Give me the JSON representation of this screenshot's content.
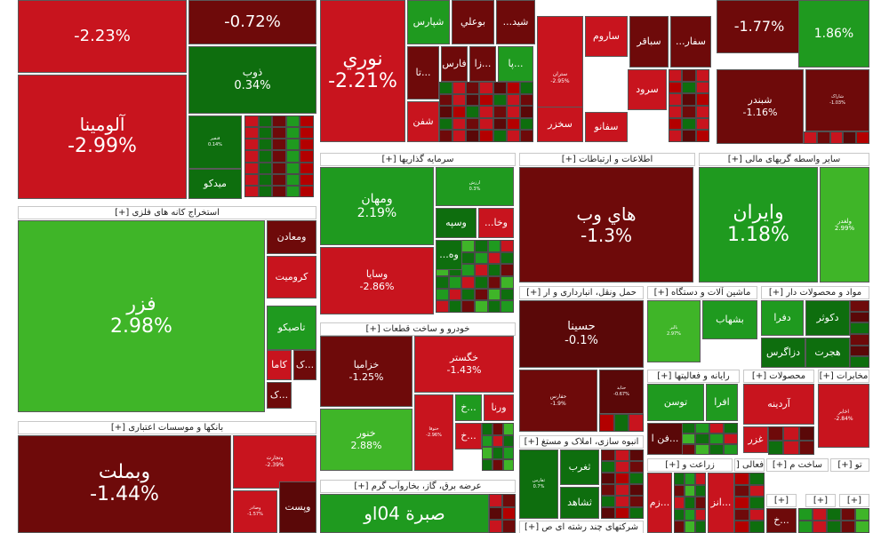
{
  "colors": {
    "strong_red": "#b30000",
    "red": "#c8141e",
    "dark_red": "#6e0a0a",
    "deeper_red": "#5a0808",
    "dark_green": "#0e6e0e",
    "green": "#1f9a1f",
    "light_green": "#3fb528"
  },
  "sectors": [
    {
      "id": "metals-mining",
      "label": "استخراج کانه های فلزی [+]"
    },
    {
      "id": "banks",
      "label": "بانکها و موسسات اعتباری [+]"
    },
    {
      "id": "investments",
      "label": "سرمایه گذاریها [+]"
    },
    {
      "id": "auto",
      "label": "خودرو و ساخت قطعات [+]"
    },
    {
      "id": "utilities",
      "label": "عرضه برق، گاز، بخاروآب گرم [+]"
    },
    {
      "id": "it",
      "label": "اطلاعات و ارتباطات [+]"
    },
    {
      "id": "finance-other",
      "label": "سایر واسطه گریهای مالی [+]"
    },
    {
      "id": "transport",
      "label": "حمل ونقل، انبارداری و ار [+]"
    },
    {
      "id": "machinery",
      "label": "ماشین آلات و دستگاه [+]"
    },
    {
      "id": "materials",
      "label": "مواد و محصولات دار [+]"
    },
    {
      "id": "computer",
      "label": "رایانه و فعالیتها [+]"
    },
    {
      "id": "products",
      "label": "محصولات [+]"
    },
    {
      "id": "telecom",
      "label": "مخابرات [+]"
    },
    {
      "id": "realestate",
      "label": "انبوه سازی، املاک و مستغ [+]"
    },
    {
      "id": "agri",
      "label": "زراعت و [+]"
    },
    {
      "id": "actv",
      "label": "فعالی [+]"
    },
    {
      "id": "build",
      "label": "ساخت م [+]"
    },
    {
      "id": "to",
      "label": "تو [+]"
    },
    {
      "id": "multi",
      "label": "شرکتهای چند رشته ای ص [+]"
    },
    {
      "id": "x1",
      "label": "[+]"
    },
    {
      "id": "x2",
      "label": "[+]"
    },
    {
      "id": "x3",
      "label": "[+]"
    }
  ],
  "tiles": [
    {
      "id": "t1",
      "name": "",
      "pct": "-2.23%",
      "color": "red"
    },
    {
      "id": "t2",
      "name": "آلومينا",
      "pct": "-2.99%",
      "color": "red"
    },
    {
      "id": "t3",
      "name": "",
      "pct": "-0.72%",
      "color": "dark_red"
    },
    {
      "id": "t4",
      "name": "ذوب",
      "pct": "0.34%",
      "color": "dark_green"
    },
    {
      "id": "t5",
      "name": "فنفیر",
      "pct": "0.14%",
      "color": "dark_green"
    },
    {
      "id": "t6",
      "name": "ميدكو",
      "pct": "",
      "color": "dark_green"
    },
    {
      "id": "t7",
      "name": "نوري",
      "pct": "-2.21%",
      "color": "red"
    },
    {
      "id": "t8",
      "name": "شپارس",
      "pct": "",
      "color": "green"
    },
    {
      "id": "t9",
      "name": "بوعلي",
      "pct": "",
      "color": "dark_red"
    },
    {
      "id": "t10",
      "name": "شيد...",
      "pct": "",
      "color": "dark_red"
    },
    {
      "id": "t11",
      "name": "...تا",
      "pct": "",
      "color": "dark_red"
    },
    {
      "id": "t12",
      "name": "فارس",
      "pct": "",
      "color": "dark_red"
    },
    {
      "id": "t13",
      "name": "...زا",
      "pct": "",
      "color": "dark_red"
    },
    {
      "id": "t14",
      "name": "...پا",
      "pct": "",
      "color": "green"
    },
    {
      "id": "t15",
      "name": "شفن",
      "pct": "",
      "color": "red"
    },
    {
      "id": "t16",
      "name": "ستران",
      "pct": "-2.95%",
      "color": "red"
    },
    {
      "id": "t17",
      "name": "ساروم",
      "pct": "",
      "color": "red"
    },
    {
      "id": "t18",
      "name": "سباقر",
      "pct": "",
      "color": "dark_red"
    },
    {
      "id": "t19",
      "name": "سفار...",
      "pct": "",
      "color": "dark_red"
    },
    {
      "id": "t20",
      "name": "سرود",
      "pct": "",
      "color": "red"
    },
    {
      "id": "t21",
      "name": "سخزر",
      "pct": "",
      "color": "red"
    },
    {
      "id": "t22",
      "name": "سفانو",
      "pct": "",
      "color": "red"
    },
    {
      "id": "t23",
      "name": "",
      "pct": "-1.77%",
      "color": "dark_red"
    },
    {
      "id": "t24",
      "name": "",
      "pct": "1.86%",
      "color": "green"
    },
    {
      "id": "t25",
      "name": "شبندر",
      "pct": "-1.16%",
      "color": "dark_red"
    },
    {
      "id": "t26",
      "name": "شاراک",
      "pct": "-1.03%",
      "color": "dark_red"
    },
    {
      "id": "t27",
      "name": "فزر",
      "pct": "2.98%",
      "color": "light_green"
    },
    {
      "id": "t28",
      "name": "ومعادن",
      "pct": "",
      "color": "dark_red"
    },
    {
      "id": "t29",
      "name": "كروميت",
      "pct": "",
      "color": "red"
    },
    {
      "id": "t30",
      "name": "تاصيكو",
      "pct": "",
      "color": "green"
    },
    {
      "id": "t31",
      "name": "...ک",
      "pct": "",
      "color": "dark_red"
    },
    {
      "id": "t32",
      "name": "كاما",
      "pct": "",
      "color": "red"
    },
    {
      "id": "t33",
      "name": "...ک",
      "pct": "",
      "color": "dark_red"
    },
    {
      "id": "t34",
      "name": "وبملت",
      "pct": "-1.44%",
      "color": "dark_red"
    },
    {
      "id": "t35",
      "name": "وتجارت",
      "pct": "-2.39%",
      "color": "red"
    },
    {
      "id": "t36",
      "name": "وصادر",
      "pct": "-1.57%",
      "color": "red"
    },
    {
      "id": "t37",
      "name": "وپست",
      "pct": "",
      "color": "deeper_red"
    },
    {
      "id": "t38",
      "name": "ومهان",
      "pct": "2.19%",
      "color": "green"
    },
    {
      "id": "t39",
      "name": "وسايا",
      "pct": "-2.86%",
      "color": "red"
    },
    {
      "id": "t40",
      "name": "ارزش",
      "pct": "0.3%",
      "color": "green"
    },
    {
      "id": "t41",
      "name": "وسپه",
      "pct": "",
      "color": "dark_green"
    },
    {
      "id": "t42",
      "name": "وخا...",
      "pct": "",
      "color": "red"
    },
    {
      "id": "t43",
      "name": "وه...",
      "pct": "",
      "color": "dark_green"
    },
    {
      "id": "t44",
      "name": "خزاميا",
      "pct": "-1.25%",
      "color": "dark_red"
    },
    {
      "id": "t45",
      "name": "خگستر",
      "pct": "-1.43%",
      "color": "red"
    },
    {
      "id": "t46",
      "name": "خنور",
      "pct": "2.88%",
      "color": "light_green"
    },
    {
      "id": "t47",
      "name": "ختوقا",
      "pct": "-2.96%",
      "color": "red"
    },
    {
      "id": "t48",
      "name": "...خ",
      "pct": "",
      "color": "green"
    },
    {
      "id": "t49",
      "name": "ورنا",
      "pct": "",
      "color": "red"
    },
    {
      "id": "t50",
      "name": "...خ",
      "pct": "",
      "color": "red"
    },
    {
      "id": "t51",
      "name": "صبرة 04او",
      "pct": "",
      "color": "green"
    },
    {
      "id": "t52",
      "name": "هاي وب",
      "pct": "-1.3%",
      "color": "dark_red"
    },
    {
      "id": "t53",
      "name": "وايران",
      "pct": "1.18%",
      "color": "green"
    },
    {
      "id": "t54",
      "name": "ولغدر",
      "pct": "2.99%",
      "color": "light_green"
    },
    {
      "id": "t55",
      "name": "حسينا",
      "pct": "-0.1%",
      "color": "deeper_red"
    },
    {
      "id": "t56",
      "name": "حفارس",
      "pct": "-1.9%",
      "color": "dark_red"
    },
    {
      "id": "t57",
      "name": "حتاید",
      "pct": "-0.67%",
      "color": "deeper_red"
    },
    {
      "id": "t58",
      "name": "بالبر",
      "pct": "2.97%",
      "color": "light_green"
    },
    {
      "id": "t59",
      "name": "بشهاب",
      "pct": "",
      "color": "green"
    },
    {
      "id": "t60",
      "name": "دفرا",
      "pct": "",
      "color": "green"
    },
    {
      "id": "t61",
      "name": "دكوثر",
      "pct": "",
      "color": "dark_green"
    },
    {
      "id": "t62",
      "name": "دزاگرس",
      "pct": "",
      "color": "dark_green"
    },
    {
      "id": "t63",
      "name": "هجرت",
      "pct": "",
      "color": "dark_green"
    },
    {
      "id": "t64",
      "name": "توسن",
      "pct": "",
      "color": "green"
    },
    {
      "id": "t65",
      "name": "افرا",
      "pct": "",
      "color": "green"
    },
    {
      "id": "t66",
      "name": "...فن ا",
      "pct": "",
      "color": "deeper_red"
    },
    {
      "id": "t67",
      "name": "آردينه",
      "pct": "",
      "color": "red"
    },
    {
      "id": "t68",
      "name": "غزر",
      "pct": "",
      "color": "red"
    },
    {
      "id": "t69",
      "name": "اخابر",
      "pct": "-2.84%",
      "color": "red"
    },
    {
      "id": "t70",
      "name": "ثفارس",
      "pct": "0.7%",
      "color": "dark_green"
    },
    {
      "id": "t71",
      "name": "ثغرب",
      "pct": "",
      "color": "dark_green"
    },
    {
      "id": "t72",
      "name": "ثشاهد",
      "pct": "",
      "color": "dark_green"
    },
    {
      "id": "t73",
      "name": "...زم",
      "pct": "",
      "color": "red"
    },
    {
      "id": "t74",
      "name": "...انز",
      "pct": "",
      "color": "red"
    },
    {
      "id": "t75",
      "name": "...خ",
      "pct": "",
      "color": "dark_red"
    }
  ]
}
